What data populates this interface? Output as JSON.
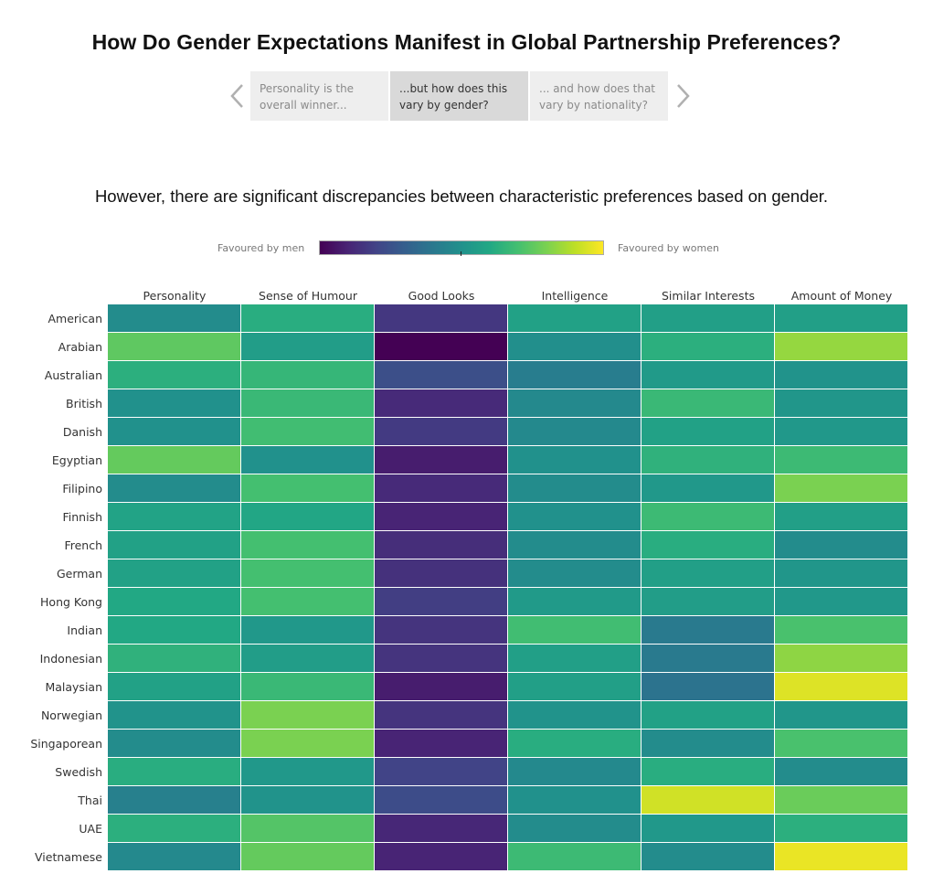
{
  "page": {
    "title": "How Do Gender Expectations Manifest in Global Partnership Preferences?",
    "subtitle": "However, there are significant discrepancies between characteristic preferences based on gender."
  },
  "story_nav": {
    "prev_icon": "chevron-left-icon",
    "next_icon": "chevron-right-icon",
    "items": [
      {
        "label": "Personality is the overall winner...",
        "active": false
      },
      {
        "label": "...but how does this vary by gender?",
        "active": true
      },
      {
        "label": "... and how does that vary by nationality?",
        "active": false
      }
    ]
  },
  "legend": {
    "left_label": "Favoured by men",
    "right_label": "Favoured by women",
    "colormap": "viridis",
    "colors": {
      "low": "#440154",
      "mid": "#21918c",
      "high": "#fde725"
    }
  },
  "chart_data": {
    "type": "heatmap",
    "title": "However, there are significant discrepancies between characteristic preferences based on gender.",
    "xlabel": "",
    "ylabel": "",
    "value_scale": "0 = favoured by men, 1 = favoured by women (estimated from color)",
    "range": [
      0,
      1
    ],
    "columns": [
      "Personality",
      "Sense of Humour",
      "Good Looks",
      "Intelligence",
      "Similar Interests",
      "Amount of Money"
    ],
    "rows": [
      "American",
      "Arabian",
      "Australian",
      "British",
      "Danish",
      "Egyptian",
      "Filipino",
      "Finnish",
      "French",
      "German",
      "Hong Kong",
      "Indian",
      "Indonesian",
      "Malaysian",
      "Norwegian",
      "Singaporean",
      "Swedish",
      "Thai",
      "UAE",
      "Vietnamese"
    ],
    "values": [
      [
        0.48,
        0.62,
        0.16,
        0.57,
        0.56,
        0.56
      ],
      [
        0.75,
        0.55,
        0.0,
        0.49,
        0.63,
        0.84
      ],
      [
        0.63,
        0.66,
        0.24,
        0.42,
        0.54,
        0.51
      ],
      [
        0.5,
        0.67,
        0.12,
        0.47,
        0.67,
        0.52
      ],
      [
        0.5,
        0.69,
        0.17,
        0.47,
        0.57,
        0.53
      ],
      [
        0.76,
        0.5,
        0.08,
        0.5,
        0.64,
        0.68
      ],
      [
        0.48,
        0.7,
        0.12,
        0.48,
        0.53,
        0.8
      ],
      [
        0.58,
        0.59,
        0.1,
        0.5,
        0.68,
        0.56
      ],
      [
        0.57,
        0.7,
        0.13,
        0.48,
        0.62,
        0.48
      ],
      [
        0.57,
        0.7,
        0.14,
        0.48,
        0.56,
        0.52
      ],
      [
        0.6,
        0.7,
        0.18,
        0.54,
        0.55,
        0.53
      ],
      [
        0.6,
        0.53,
        0.15,
        0.69,
        0.41,
        0.71
      ],
      [
        0.64,
        0.55,
        0.15,
        0.56,
        0.41,
        0.83
      ],
      [
        0.57,
        0.67,
        0.08,
        0.56,
        0.38,
        0.95
      ],
      [
        0.51,
        0.8,
        0.15,
        0.51,
        0.57,
        0.52
      ],
      [
        0.48,
        0.8,
        0.1,
        0.62,
        0.48,
        0.71
      ],
      [
        0.62,
        0.53,
        0.2,
        0.47,
        0.62,
        0.48
      ],
      [
        0.43,
        0.51,
        0.23,
        0.5,
        0.93,
        0.77
      ],
      [
        0.63,
        0.73,
        0.11,
        0.48,
        0.53,
        0.63
      ],
      [
        0.47,
        0.76,
        0.1,
        0.68,
        0.48,
        0.97
      ]
    ],
    "legend": {
      "left": "Favoured by men",
      "right": "Favoured by women",
      "placement": "top"
    }
  }
}
